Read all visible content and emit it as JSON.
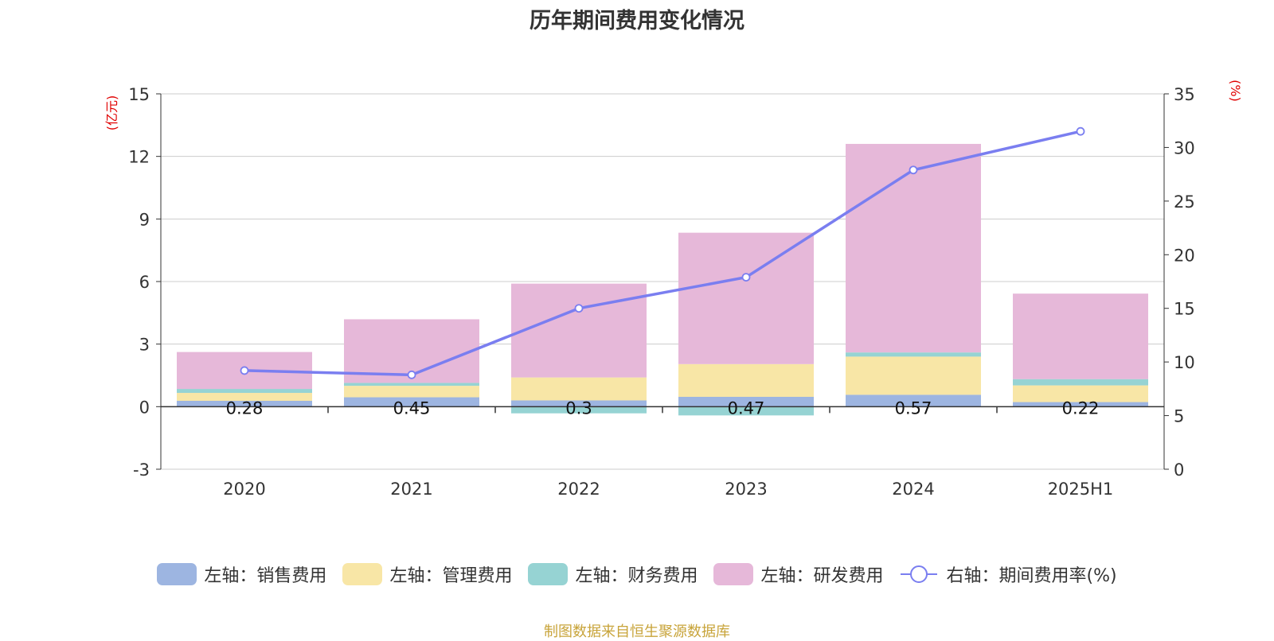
{
  "chart_data": {
    "type": "bar",
    "title": "历年期间费用变化情况",
    "categories": [
      "2020",
      "2021",
      "2022",
      "2023",
      "2024",
      "2025H1"
    ],
    "left_axis": {
      "label": "(亿元)",
      "range": [
        -3,
        15
      ],
      "ticks": [
        -3,
        0,
        3,
        6,
        9,
        12,
        15
      ]
    },
    "right_axis": {
      "label": "(%)",
      "range": [
        0,
        35
      ],
      "ticks": [
        0,
        5,
        10,
        15,
        20,
        25,
        30,
        35
      ]
    },
    "series": [
      {
        "name": "左轴：销售费用",
        "type": "stacked-bar",
        "axis": "left",
        "color": "#9db5e1",
        "values": [
          0.28,
          0.45,
          0.3,
          0.47,
          0.57,
          0.22
        ],
        "labels": [
          "0.28",
          "0.45",
          "0.3",
          "0.47",
          "0.57",
          "0.22"
        ]
      },
      {
        "name": "左轴：管理费用",
        "type": "stacked-bar",
        "axis": "left",
        "color": "#f8e6a6",
        "values": [
          0.38,
          0.55,
          1.1,
          1.57,
          1.83,
          0.8
        ]
      },
      {
        "name": "左轴：财务费用",
        "type": "stacked-bar",
        "axis": "left",
        "color": "#96d3d3",
        "values": [
          0.19,
          0.14,
          -0.32,
          -0.42,
          0.2,
          0.3
        ]
      },
      {
        "name": "左轴：研发费用",
        "type": "stacked-bar",
        "axis": "left",
        "color": "#e6b8d9",
        "values": [
          1.77,
          3.05,
          4.5,
          6.3,
          10.0,
          4.1
        ]
      },
      {
        "name": "右轴：期间费用率(%)",
        "type": "line",
        "axis": "right",
        "color": "#7a7ef0",
        "values": [
          9.2,
          8.8,
          15.0,
          17.9,
          27.9,
          31.5
        ]
      }
    ],
    "grid": true,
    "legend_position": "bottom"
  },
  "source_note": "制图数据来自恒生聚源数据库"
}
